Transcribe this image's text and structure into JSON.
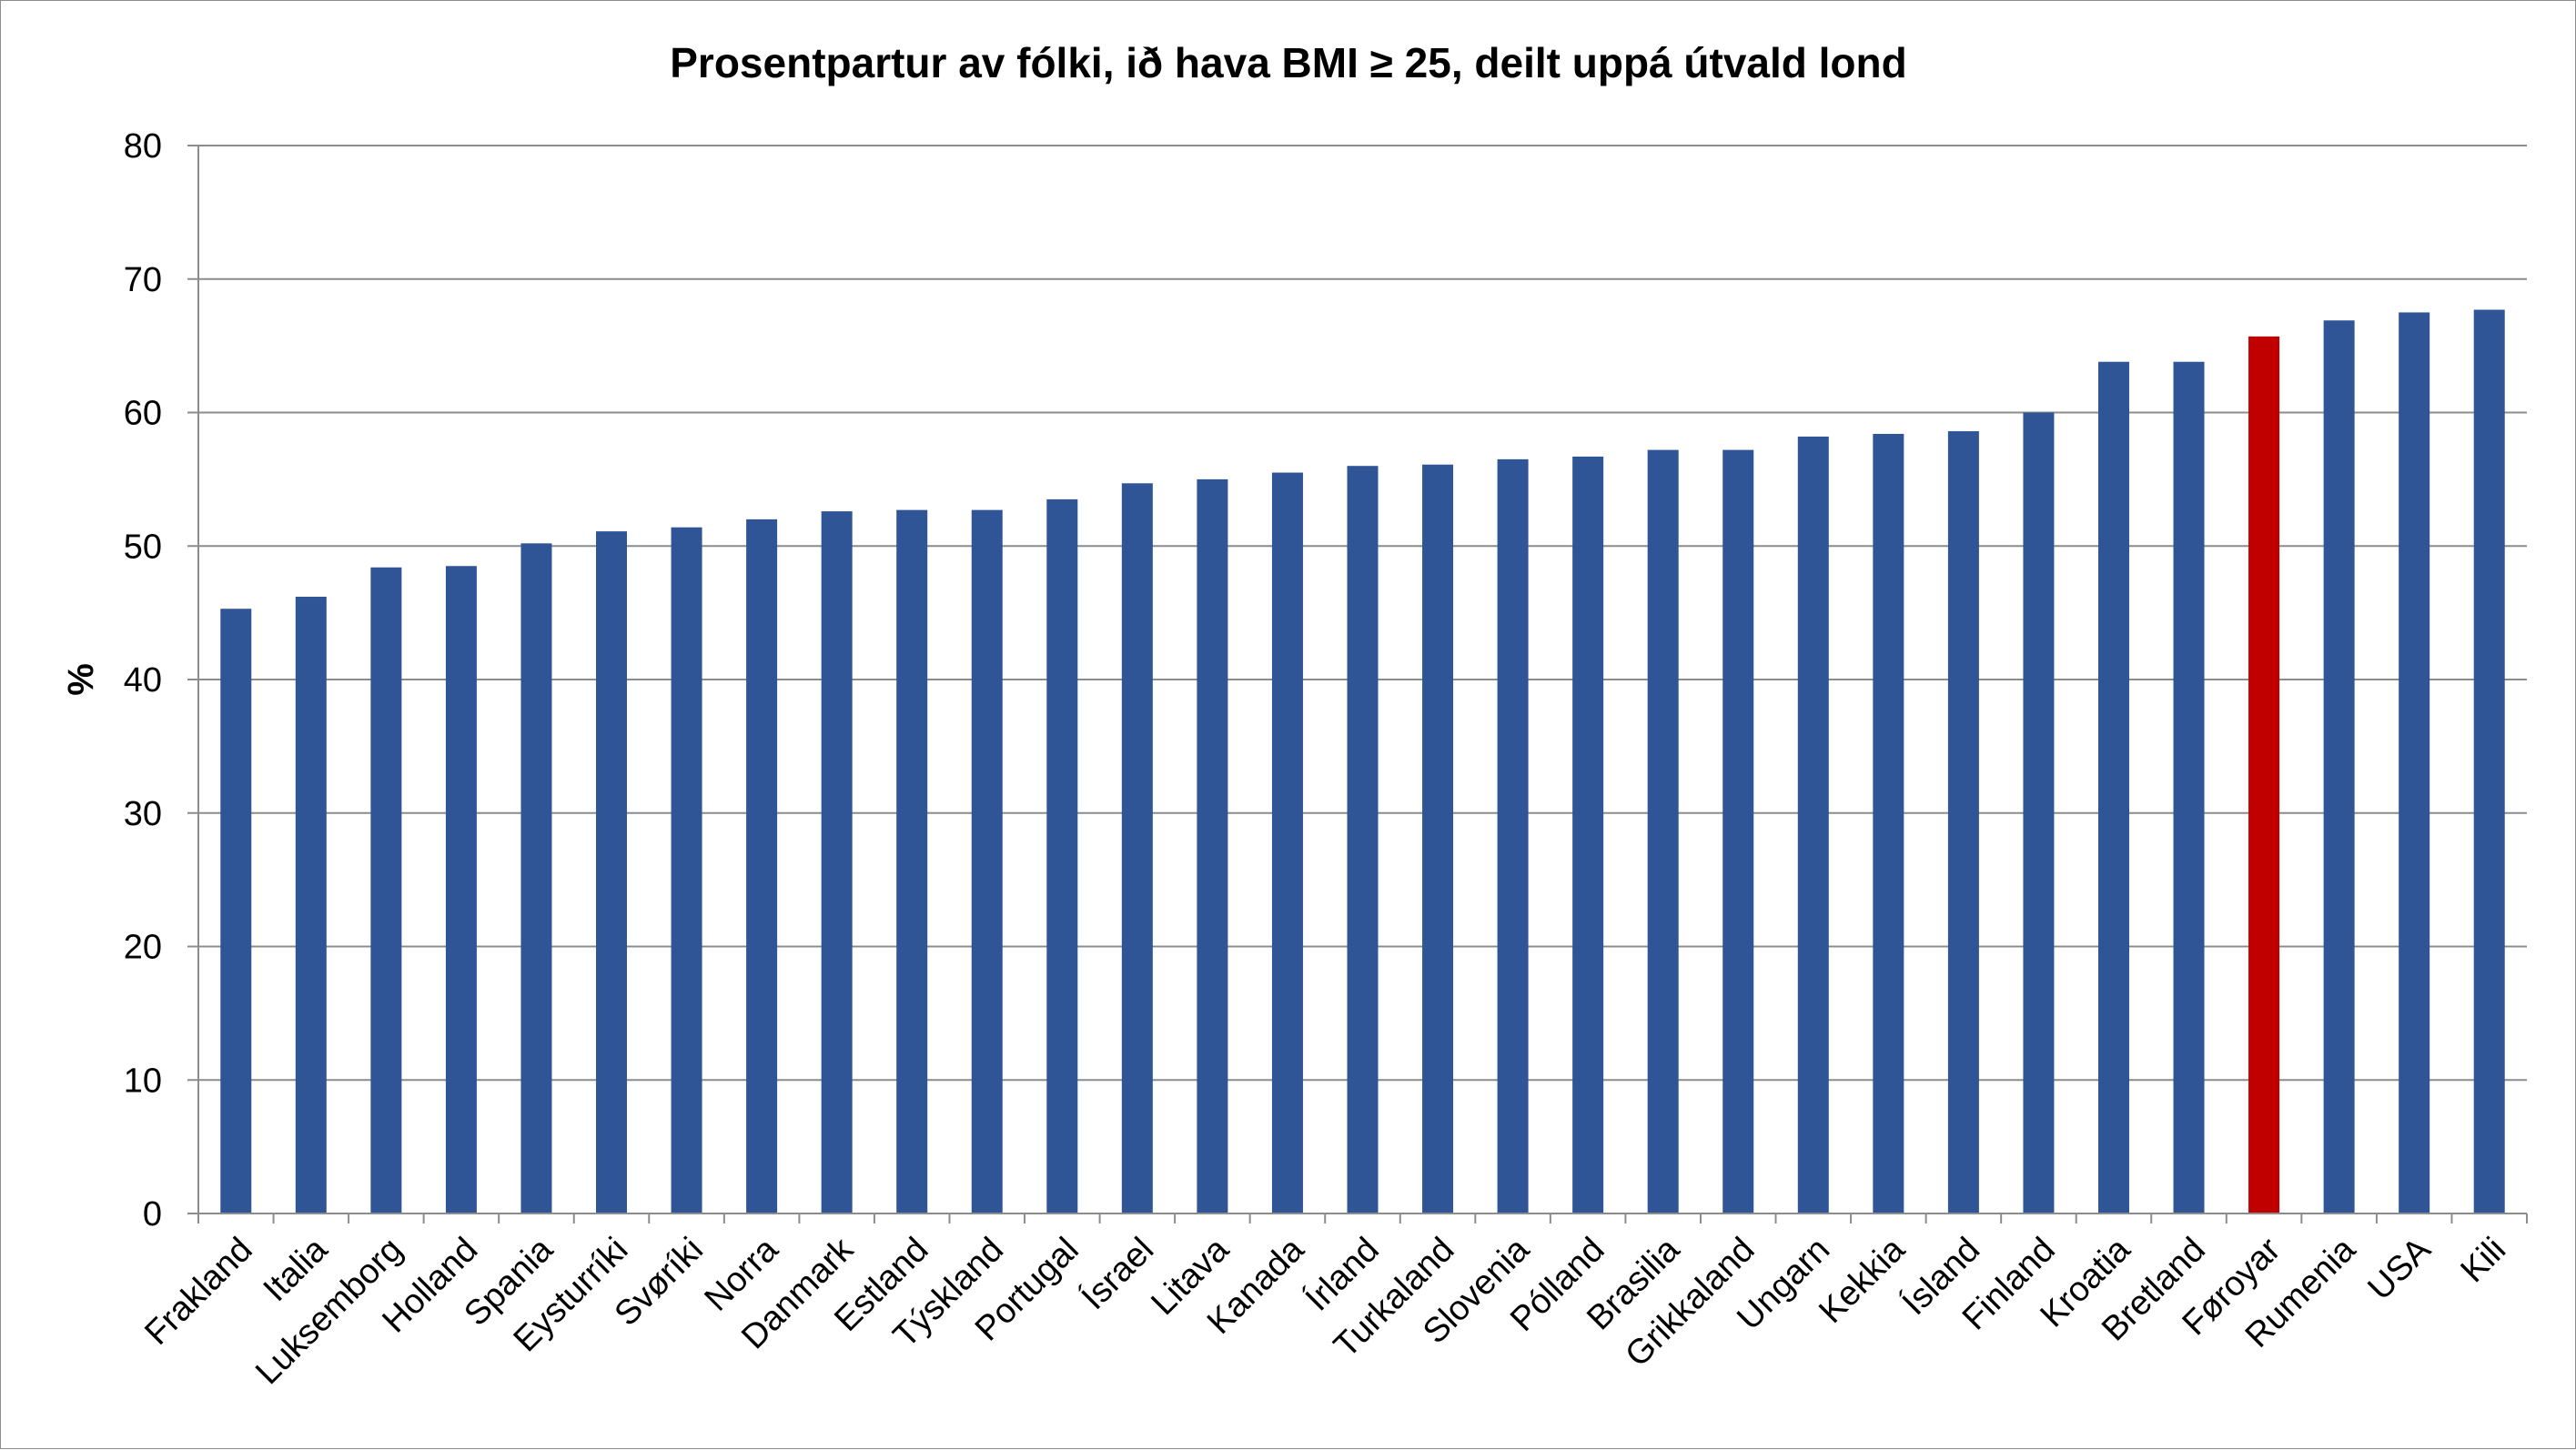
{
  "chart_data": {
    "type": "bar",
    "title": "Prosentpartur av fólki, ið hava BMI ≥ 25, deilt uppá útvald lond",
    "xlabel": "",
    "ylabel": "%",
    "ylim": [
      0,
      80
    ],
    "yticks": [
      "0",
      "10",
      "20",
      "30",
      "40",
      "50",
      "60",
      "70",
      "80"
    ],
    "grid": true,
    "legend": "none",
    "categories": [
      "Frakland",
      "Italia",
      "Luksemborg",
      "Holland",
      "Spania",
      "Eysturríki",
      "Svøríki",
      "Norra",
      "Danmark",
      "Estland",
      "Týskland",
      "Portugal",
      "Ísrael",
      "Litava",
      "Kanada",
      "Írland",
      "Turkaland",
      "Slovenia",
      "Pólland",
      "Brasilia",
      "Grikkaland",
      "Ungarn",
      "Kekkia",
      "Ísland",
      "Finland",
      "Kroatia",
      "Bretland",
      "Føroyar",
      "Rumenia",
      "USA",
      "Kili"
    ],
    "values": [
      45.3,
      46.2,
      48.4,
      48.5,
      50.2,
      51.1,
      51.4,
      52.0,
      52.6,
      52.7,
      52.7,
      53.5,
      54.7,
      55.0,
      55.5,
      56.0,
      56.1,
      56.5,
      56.7,
      57.2,
      57.2,
      58.2,
      58.4,
      58.6,
      60.0,
      63.8,
      63.8,
      65.7,
      66.9,
      67.5,
      67.7
    ],
    "colors": {
      "bar": "#2f5597",
      "highlight": "#c00000",
      "grid": "#8c8c8c",
      "axis": "#8c8c8c"
    },
    "highlight_category": "Føroyar"
  }
}
